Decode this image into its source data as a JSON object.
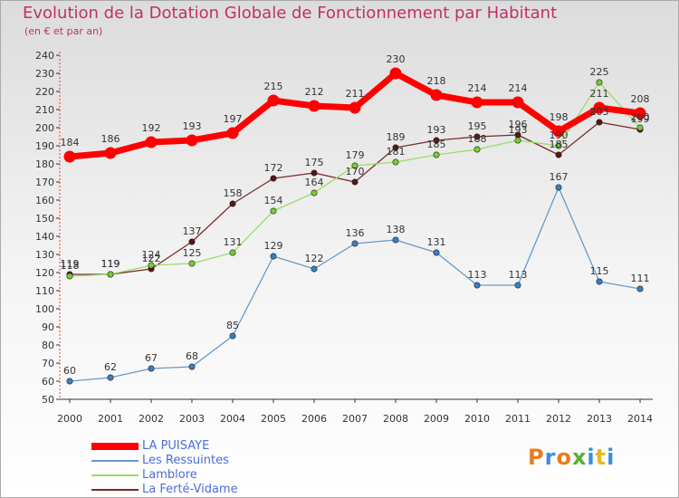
{
  "chart_data": {
    "type": "line",
    "title": "Evolution de la Dotation Globale de Fonctionnement par Habitant",
    "subtitle": "(en € et par an)",
    "categories": [
      "2000",
      "2001",
      "2002",
      "2003",
      "2004",
      "2005",
      "2006",
      "2007",
      "2008",
      "2009",
      "2010",
      "2011",
      "2012",
      "2013",
      "2014"
    ],
    "ylim": [
      50,
      240
    ],
    "ytick_step": 10,
    "grid": false,
    "legend_position": "bottom-left",
    "series": [
      {
        "name": "LA PUISAYE",
        "color": "#ff0000",
        "marker_color": "#ff0000",
        "emphasis": true,
        "values": [
          184,
          186,
          192,
          193,
          197,
          215,
          212,
          211,
          230,
          218,
          214,
          214,
          198,
          211,
          208
        ]
      },
      {
        "name": "Les Ressuintes",
        "color": "#6699cc",
        "marker_color": "#3a7fc0",
        "values": [
          60,
          62,
          67,
          68,
          85,
          129,
          122,
          136,
          138,
          131,
          113,
          113,
          167,
          115,
          111
        ]
      },
      {
        "name": "Lamblore",
        "color": "#99dd66",
        "marker_color": "#77cc33",
        "values": [
          118,
          119,
          124,
          125,
          131,
          154,
          164,
          179,
          181,
          185,
          188,
          193,
          190,
          225,
          200
        ]
      },
      {
        "name": "La Ferté-Vidame",
        "color": "#7a2a2a",
        "marker_color": "#5a1414",
        "values": [
          119,
          119,
          122,
          137,
          158,
          172,
          175,
          170,
          189,
          193,
          195,
          196,
          185,
          203,
          199
        ]
      }
    ]
  },
  "branding": {
    "logo_text": "Proxiti",
    "logo_colors": [
      "#e87d1e",
      "#3a8fd8",
      "#e87d1e",
      "#56b030",
      "#3a8fd8",
      "#e8b81e",
      "#3a8fd8"
    ]
  }
}
